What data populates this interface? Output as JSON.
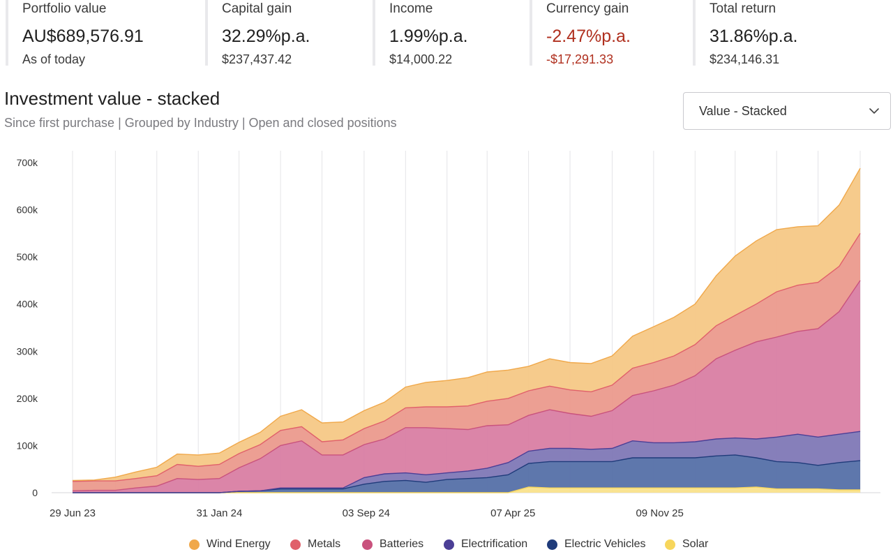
{
  "kpis": [
    {
      "label": "Portfolio value",
      "value": "AU$689,576.91",
      "sub": "As of today",
      "negative": false
    },
    {
      "label": "Capital gain",
      "value": "32.29%p.a.",
      "sub": "$237,437.42",
      "negative": false
    },
    {
      "label": "Income",
      "value": "1.99%p.a.",
      "sub": "$14,000.22",
      "negative": false
    },
    {
      "label": "Currency gain",
      "value": "-2.47%p.a.",
      "sub": "-$17,291.33",
      "negative": true
    },
    {
      "label": "Total return",
      "value": "31.86%p.a.",
      "sub": "$234,146.31",
      "negative": false
    }
  ],
  "chart_header": {
    "title": "Investment value - stacked",
    "subtitle": "Since first purchase | Grouped by Industry | Open and closed positions"
  },
  "view_select": {
    "selected": "Value - Stacked",
    "icon": "chevron-down-icon"
  },
  "chart_data": {
    "type": "area",
    "stacked": true,
    "grid": "vertical",
    "legend_position": "bottom",
    "ylim": [
      0,
      700000
    ],
    "y_ticks": [
      0,
      100000,
      200000,
      300000,
      400000,
      500000,
      600000,
      700000
    ],
    "y_tick_labels": [
      "0",
      "100k",
      "200k",
      "300k",
      "400k",
      "500k",
      "600k",
      "700k"
    ],
    "x_tick_labels": [
      "29 Jun 23",
      "31 Jan 24",
      "03 Sep 24",
      "07 Apr 25",
      "09 Nov 25"
    ],
    "x": [
      "2023-06-29",
      "2023-07-31",
      "2023-08-31",
      "2023-09-30",
      "2023-10-31",
      "2023-11-30",
      "2023-12-31",
      "2024-01-31",
      "2024-02-29",
      "2024-03-31",
      "2024-04-30",
      "2024-05-31",
      "2024-06-30",
      "2024-07-31",
      "2024-08-31",
      "2024-09-30",
      "2024-10-31",
      "2024-11-30",
      "2024-12-31",
      "2025-01-31",
      "2025-02-28",
      "2025-03-31",
      "2025-04-30",
      "2025-05-31",
      "2025-06-30",
      "2025-07-31",
      "2025-08-31",
      "2025-09-30",
      "2025-10-31",
      "2025-11-30",
      "2025-12-31",
      "2026-01-31",
      "2026-02-28",
      "2026-03-31",
      "2026-04-30",
      "2026-05-31",
      "2026-06-30",
      "2026-07-31",
      "2026-08-31"
    ],
    "series": [
      {
        "name": "Solar",
        "color": "#f7d65c",
        "fill": "#f9e28c",
        "values": [
          0,
          0,
          0,
          0,
          0,
          0,
          0,
          0,
          0,
          0,
          0,
          0,
          0,
          0,
          0,
          0,
          0,
          0,
          0,
          0,
          0,
          0,
          12000,
          10000,
          10000,
          10000,
          10000,
          10000,
          10000,
          10000,
          10000,
          10000,
          10000,
          12000,
          8000,
          8000,
          8000,
          6000,
          6000
        ]
      },
      {
        "name": "Electric Vehicles",
        "color": "#1f3b7a",
        "fill": "#5570a8",
        "values": [
          0,
          0,
          0,
          0,
          0,
          0,
          0,
          0,
          3000,
          4000,
          8000,
          8000,
          8000,
          8000,
          18000,
          24000,
          26000,
          22000,
          28000,
          30000,
          32000,
          38000,
          50000,
          56000,
          56000,
          56000,
          56000,
          64000,
          64000,
          64000,
          64000,
          68000,
          70000,
          62000,
          58000,
          56000,
          50000,
          58000,
          62000
        ]
      },
      {
        "name": "Electrification",
        "color": "#4b3f96",
        "fill": "#7f78b6",
        "values": [
          0,
          0,
          0,
          0,
          0,
          0,
          0,
          0,
          0,
          0,
          2000,
          2000,
          2000,
          2000,
          14000,
          16000,
          16000,
          16000,
          14000,
          16000,
          20000,
          26000,
          26000,
          28000,
          28000,
          26000,
          28000,
          36000,
          32000,
          32000,
          34000,
          36000,
          36000,
          40000,
          52000,
          60000,
          60000,
          60000,
          62000
        ]
      },
      {
        "name": "Batteries",
        "color": "#c9527d",
        "fill": "#d97ea3",
        "values": [
          4000,
          5000,
          5000,
          10000,
          14000,
          30000,
          28000,
          30000,
          50000,
          68000,
          90000,
          100000,
          70000,
          70000,
          70000,
          74000,
          96000,
          100000,
          94000,
          88000,
          90000,
          80000,
          76000,
          82000,
          74000,
          70000,
          80000,
          96000,
          110000,
          122000,
          140000,
          170000,
          186000,
          206000,
          212000,
          218000,
          230000,
          260000,
          320000
        ]
      },
      {
        "name": "Metals",
        "color": "#e0606a",
        "fill": "#eb9a8d",
        "values": [
          20000,
          20000,
          20000,
          20000,
          22000,
          30000,
          28000,
          30000,
          30000,
          30000,
          32000,
          30000,
          28000,
          32000,
          34000,
          38000,
          42000,
          44000,
          46000,
          50000,
          52000,
          56000,
          52000,
          50000,
          50000,
          52000,
          54000,
          58000,
          60000,
          62000,
          66000,
          70000,
          74000,
          80000,
          96000,
          98000,
          98000,
          96000,
          100000
        ]
      },
      {
        "name": "Wind Energy",
        "color": "#f0a84a",
        "fill": "#f6c886",
        "values": [
          2000,
          2000,
          8000,
          14000,
          18000,
          22000,
          24000,
          24000,
          24000,
          26000,
          30000,
          36000,
          40000,
          38000,
          38000,
          40000,
          44000,
          52000,
          56000,
          60000,
          62000,
          60000,
          52000,
          58000,
          58000,
          60000,
          62000,
          68000,
          76000,
          82000,
          86000,
          106000,
          126000,
          134000,
          132000,
          124000,
          120000,
          130000,
          138000
        ]
      }
    ]
  }
}
